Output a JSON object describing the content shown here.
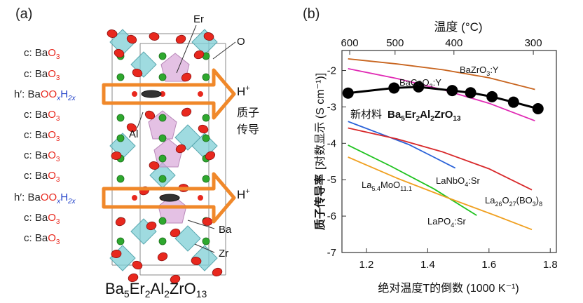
{
  "panel_a": {
    "panel_label": "(a)",
    "layers": [
      {
        "kind": "c",
        "prefix": "c: Ba",
        "o": "O",
        "sub3": "3"
      },
      {
        "kind": "c",
        "prefix": "c: Ba",
        "o": "O",
        "sub3": "3"
      },
      {
        "kind": "h",
        "prefix": "h′: Ba",
        "o": "OO",
        "x": "x",
        "h": "H",
        "sub2x": "2x"
      },
      {
        "kind": "c",
        "prefix": "c: Ba",
        "o": "O",
        "sub3": "3"
      },
      {
        "kind": "c",
        "prefix": "c: Ba",
        "o": "O",
        "sub3": "3"
      },
      {
        "kind": "c",
        "prefix": "c: Ba",
        "o": "O",
        "sub3": "3"
      },
      {
        "kind": "c",
        "prefix": "c: Ba",
        "o": "O",
        "sub3": "3"
      },
      {
        "kind": "h",
        "prefix": "h′: Ba",
        "o": "OO",
        "x": "x",
        "h": "H",
        "sub2x": "2x"
      },
      {
        "kind": "c",
        "prefix": "c: Ba",
        "o": "O",
        "sub3": "3"
      },
      {
        "kind": "c",
        "prefix": "c: Ba",
        "o": "O",
        "sub3": "3"
      }
    ],
    "atom_labels": {
      "er": "Er",
      "o": "O",
      "al": "Al",
      "ba": "Ba",
      "zr": "Zr"
    },
    "proton": {
      "h": "H",
      "plus": "+"
    },
    "conduction_label_1": "质子",
    "conduction_label_2": "传导",
    "formula": {
      "ba": "Ba",
      "n5": "5",
      "er": "Er",
      "n2a": "2",
      "al": "Al",
      "n2b": "2",
      "zro": "ZrO",
      "n13": "13"
    },
    "colors": {
      "oxygen": "#e8281e",
      "arrow": "#f0882a",
      "hx": "#1f3fc8",
      "octahedron": "#7fcfd6",
      "er_polyhedron": "#d9a7d9",
      "ba_atom": "#2ea82e"
    }
  },
  "chart_data": {
    "type": "line",
    "panel_label": "(b)",
    "top_axis_label": "温度 (°C)",
    "top_ticks": [
      {
        "label": "600",
        "celsius": 600
      },
      {
        "label": "500",
        "celsius": 500
      },
      {
        "label": "400",
        "celsius": 400
      },
      {
        "label": "300",
        "celsius": 300
      }
    ],
    "xlabel": "绝对温度T的倒数 (1000 K⁻¹)",
    "ylabel_bold": "质子传导率",
    "ylabel_rest": "[对数显示 (S cm⁻¹)]",
    "xlim": [
      1.12,
      1.82
    ],
    "ylim": [
      -7,
      -1.45
    ],
    "xticks": [
      "1.2",
      "1.4",
      "1.6",
      "1.8"
    ],
    "yticks": [
      "-2",
      "-3",
      "-4",
      "-5",
      "-6",
      "-7"
    ],
    "series": [
      {
        "name": "BaZrO₃:Y",
        "color": "#c8641e",
        "x": [
          1.14,
          1.3,
          1.45,
          1.6,
          1.75
        ],
        "y": [
          -1.68,
          -1.82,
          -1.98,
          -2.2,
          -2.52
        ]
      },
      {
        "name": "BaCeO₃:Y",
        "color": "#e02ab4",
        "x": [
          1.14,
          1.3,
          1.45,
          1.6,
          1.75
        ],
        "y": [
          -1.95,
          -2.22,
          -2.53,
          -2.9,
          -3.38
        ]
      },
      {
        "name": "Ba₅Er₂Al₂ZrO₁₃",
        "label_cn": "新材料",
        "label_formula": {
          "ba": "Ba",
          "n5": "5",
          "er": "Er",
          "n2a": "2",
          "al": "Al",
          "n2b": "2",
          "zro": "ZrO",
          "n13": "13"
        },
        "color": "#000000",
        "markers": true,
        "x": [
          1.14,
          1.29,
          1.37,
          1.48,
          1.54,
          1.61,
          1.68,
          1.76
        ],
        "y": [
          -2.62,
          -2.48,
          -2.45,
          -2.55,
          -2.61,
          -2.72,
          -2.87,
          -3.05
        ]
      },
      {
        "name": "LaNbO₄:Sr",
        "color": "#2a62d8",
        "x": [
          1.14,
          1.24,
          1.34,
          1.42,
          1.49
        ],
        "y": [
          -3.4,
          -3.72,
          -4.04,
          -4.38,
          -4.68
        ]
      },
      {
        "name": "La₂₆O₂₇(BO₃)₈",
        "color": "#d8282a",
        "x": [
          1.14,
          1.3,
          1.45,
          1.6,
          1.74
        ],
        "y": [
          -3.58,
          -3.88,
          -4.24,
          -4.7,
          -5.28
        ]
      },
      {
        "name": "La₅.₄MoO₁₁.₁",
        "color": "#1ec21e",
        "x": [
          1.14,
          1.28,
          1.42,
          1.56
        ],
        "y": [
          -4.05,
          -4.63,
          -5.25,
          -5.98
        ]
      },
      {
        "name": "LaPO₄:Sr",
        "color": "#f0a020",
        "x": [
          1.14,
          1.3,
          1.46,
          1.62,
          1.74
        ],
        "y": [
          -4.38,
          -4.96,
          -5.48,
          -5.98,
          -6.37
        ]
      }
    ],
    "series_labels": {
      "bazro3": {
        "a": "BaZrO",
        "s1": "3",
        "b": ":Y"
      },
      "baceo3": {
        "a": "BaCeO",
        "s1": "3",
        "b": ":Y"
      },
      "lanbo4": {
        "a": "LaNbO",
        "s1": "4",
        "b": ":Sr"
      },
      "la26": {
        "a": "La",
        "s1": "26",
        "b": "O",
        "s2": "27",
        "c": "(BO",
        "s3": "3",
        "d": ")",
        "s4": "8"
      },
      "la54": {
        "a": "La",
        "s1": "5.4",
        "b": "MoO",
        "s2": "11.1"
      },
      "lapo4": {
        "a": "LaPO",
        "s1": "4",
        "b": ":Sr"
      }
    }
  }
}
